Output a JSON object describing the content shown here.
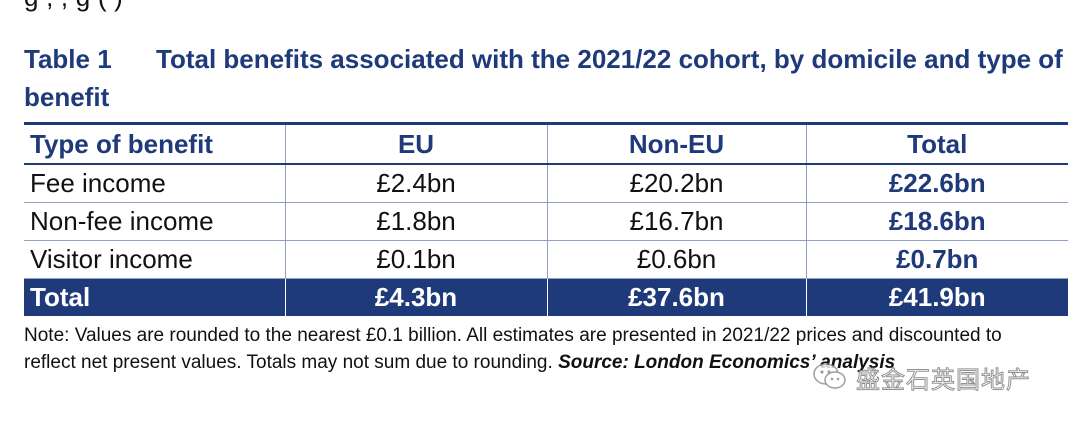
{
  "top_fragment": "g           ,            ,                                 g                                  (       )",
  "caption": {
    "number": "Table 1",
    "title": "Total benefits associated with the 2021/22 cohort, by domicile and type of benefit"
  },
  "table": {
    "headers": [
      "Type of benefit",
      "EU",
      "Non-EU",
      "Total"
    ],
    "rows": [
      {
        "type": "Fee income",
        "eu": "£2.4bn",
        "non_eu": "£20.2bn",
        "total": "£22.6bn"
      },
      {
        "type": "Non-fee income",
        "eu": "£1.8bn",
        "non_eu": "£16.7bn",
        "total": "£18.6bn"
      },
      {
        "type": "Visitor income",
        "eu": "£0.1bn",
        "non_eu": "£0.6bn",
        "total": "£0.7bn"
      }
    ],
    "total_row": {
      "type": "Total",
      "eu": "£4.3bn",
      "non_eu": "£37.6bn",
      "total": "£41.9bn"
    }
  },
  "note": {
    "text": "Note: Values are rounded to the nearest £0.1 billion. All estimates are presented in 2021/22 prices and discounted to reflect net present values. Totals may not sum due to rounding.",
    "source": "Source: London Economics’ analysis"
  },
  "watermark": {
    "icon": "wechat-icon",
    "text": "盛金石英国地产"
  },
  "colors": {
    "accent": "#1f3a7a",
    "text": "#111111",
    "rule": "#8fa0c4"
  }
}
